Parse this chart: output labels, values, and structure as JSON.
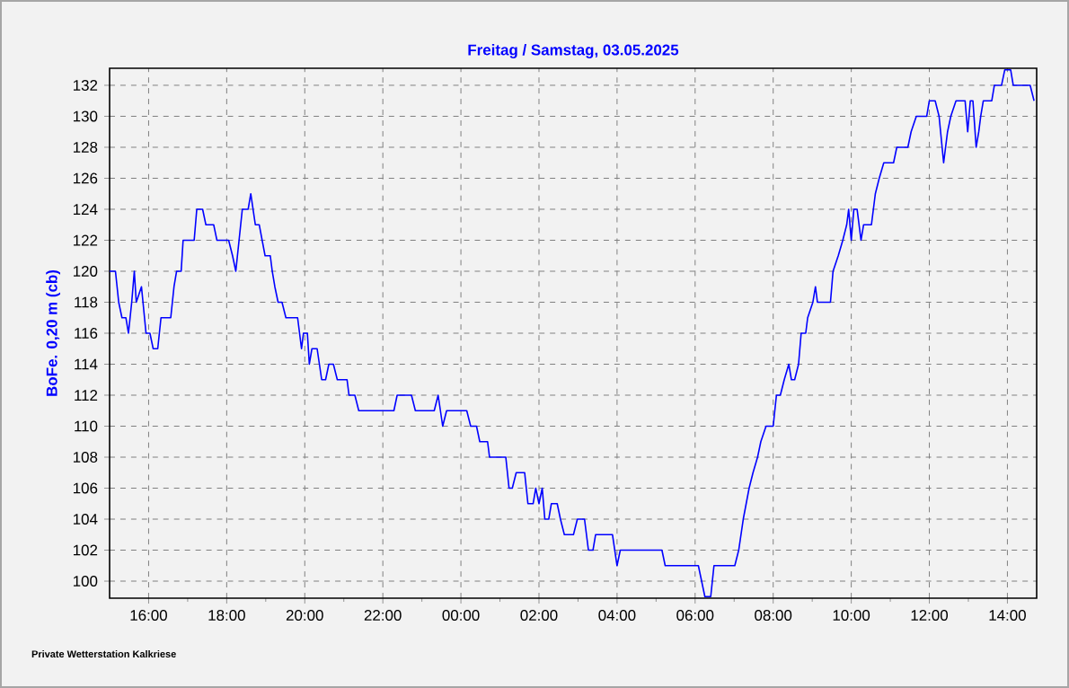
{
  "chart_data": {
    "type": "line",
    "title": "Freitag / Samstag, 03.05.2025",
    "ylabel": "BoFe. 0,20 m (cb)",
    "annotations": [
      "Private Wetterstation Kalkriese"
    ],
    "x": [
      "2025-05-02T15:00",
      "2025-05-02T15:09",
      "2025-05-02T15:14",
      "2025-05-02T15:19",
      "2025-05-02T15:25",
      "2025-05-02T15:29",
      "2025-05-02T15:34",
      "2025-05-02T15:38",
      "2025-05-02T15:41",
      "2025-05-02T15:49",
      "2025-05-02T15:56",
      "2025-05-02T16:02",
      "2025-05-02T16:07",
      "2025-05-02T16:14",
      "2025-05-02T16:19",
      "2025-05-02T16:34",
      "2025-05-02T16:39",
      "2025-05-02T16:43",
      "2025-05-02T16:50",
      "2025-05-02T16:53",
      "2025-05-02T17:10",
      "2025-05-02T17:14",
      "2025-05-02T17:23",
      "2025-05-02T17:28",
      "2025-05-02T17:40",
      "2025-05-02T17:45",
      "2025-05-02T18:03",
      "2025-05-02T18:09",
      "2025-05-02T18:14",
      "2025-05-02T18:19",
      "2025-05-02T18:24",
      "2025-05-02T18:33",
      "2025-05-02T18:37",
      "2025-05-02T18:44",
      "2025-05-02T18:50",
      "2025-05-02T18:59",
      "2025-05-02T19:07",
      "2025-05-02T19:10",
      "2025-05-02T19:14",
      "2025-05-02T19:19",
      "2025-05-02T19:25",
      "2025-05-02T19:31",
      "2025-05-02T19:49",
      "2025-05-02T19:55",
      "2025-05-02T19:58",
      "2025-05-02T20:04",
      "2025-05-02T20:07",
      "2025-05-02T20:11",
      "2025-05-02T20:19",
      "2025-05-02T20:26",
      "2025-05-02T20:32",
      "2025-05-02T20:37",
      "2025-05-02T20:44",
      "2025-05-02T20:50",
      "2025-05-02T21:05",
      "2025-05-02T21:08",
      "2025-05-02T21:17",
      "2025-05-02T21:23",
      "2025-05-02T22:17",
      "2025-05-02T22:22",
      "2025-05-02T22:44",
      "2025-05-02T22:50",
      "2025-05-02T23:19",
      "2025-05-02T23:25",
      "2025-05-02T23:32",
      "2025-05-02T23:38",
      "2025-05-03T00:09",
      "2025-05-03T00:15",
      "2025-05-03T00:24",
      "2025-05-03T00:29",
      "2025-05-03T00:41",
      "2025-05-03T00:44",
      "2025-05-03T01:09",
      "2025-05-03T01:14",
      "2025-05-03T01:19",
      "2025-05-03T01:25",
      "2025-05-03T01:38",
      "2025-05-03T01:43",
      "2025-05-03T01:51",
      "2025-05-03T01:55",
      "2025-05-03T02:00",
      "2025-05-03T02:05",
      "2025-05-03T02:09",
      "2025-05-03T02:15",
      "2025-05-03T02:19",
      "2025-05-03T02:28",
      "2025-05-03T02:33",
      "2025-05-03T02:39",
      "2025-05-03T02:53",
      "2025-05-03T02:59",
      "2025-05-03T03:10",
      "2025-05-03T03:16",
      "2025-05-03T03:23",
      "2025-05-03T03:27",
      "2025-05-03T03:53",
      "2025-05-03T04:00",
      "2025-05-03T04:05",
      "2025-05-03T05:09",
      "2025-05-03T05:14",
      "2025-05-03T06:05",
      "2025-05-03T06:15",
      "2025-05-03T06:24",
      "2025-05-03T06:29",
      "2025-05-03T07:01",
      "2025-05-03T07:07",
      "2025-05-03T07:14",
      "2025-05-03T07:23",
      "2025-05-03T07:29",
      "2025-05-03T07:36",
      "2025-05-03T07:41",
      "2025-05-03T07:49",
      "2025-05-03T08:00",
      "2025-05-03T08:05",
      "2025-05-03T08:11",
      "2025-05-03T08:17",
      "2025-05-03T08:24",
      "2025-05-03T08:28",
      "2025-05-03T08:33",
      "2025-05-03T08:39",
      "2025-05-03T08:43",
      "2025-05-03T08:50",
      "2025-05-03T08:53",
      "2025-05-03T09:01",
      "2025-05-03T09:05",
      "2025-05-03T09:08",
      "2025-05-03T09:28",
      "2025-05-03T09:32",
      "2025-05-03T09:40",
      "2025-05-03T09:47",
      "2025-05-03T09:53",
      "2025-05-03T09:56",
      "2025-05-03T10:00",
      "2025-05-03T10:04",
      "2025-05-03T10:09",
      "2025-05-03T10:15",
      "2025-05-03T10:19",
      "2025-05-03T10:31",
      "2025-05-03T10:37",
      "2025-05-03T10:43",
      "2025-05-03T10:50",
      "2025-05-03T11:05",
      "2025-05-03T11:10",
      "2025-05-03T11:27",
      "2025-05-03T11:32",
      "2025-05-03T11:40",
      "2025-05-03T11:56",
      "2025-05-03T12:00",
      "2025-05-03T12:09",
      "2025-05-03T12:15",
      "2025-05-03T12:22",
      "2025-05-03T12:28",
      "2025-05-03T12:33",
      "2025-05-03T12:41",
      "2025-05-03T12:55",
      "2025-05-03T12:59",
      "2025-05-03T13:03",
      "2025-05-03T13:07",
      "2025-05-03T13:12",
      "2025-05-03T13:16",
      "2025-05-03T13:19",
      "2025-05-03T13:23",
      "2025-05-03T13:36",
      "2025-05-03T13:40",
      "2025-05-03T13:51",
      "2025-05-03T13:56",
      "2025-05-03T14:05",
      "2025-05-03T14:09",
      "2025-05-03T14:35",
      "2025-05-03T14:41"
    ],
    "series": [
      {
        "color": "#0000ff",
        "values": [
          120,
          120,
          118,
          117,
          117,
          116,
          118,
          120,
          118,
          119,
          116,
          116,
          115,
          115,
          117,
          117,
          119,
          120,
          120,
          122,
          122,
          124,
          124,
          123,
          123,
          122,
          122,
          121,
          120,
          122,
          124,
          124,
          125,
          123,
          123,
          121,
          121,
          120,
          119,
          118,
          118,
          117,
          117,
          115,
          116,
          116,
          114,
          115,
          115,
          113,
          113,
          114,
          114,
          113,
          113,
          112,
          112,
          111,
          111,
          112,
          112,
          111,
          111,
          112,
          110,
          111,
          111,
          110,
          110,
          109,
          109,
          108,
          108,
          106,
          106,
          107,
          107,
          105,
          105,
          106,
          105,
          106,
          104,
          104,
          105,
          105,
          104,
          103,
          103,
          104,
          104,
          102,
          102,
          103,
          103,
          101,
          102,
          102,
          101,
          101,
          99,
          99,
          101,
          101,
          102,
          104,
          106,
          107,
          108,
          109,
          110,
          110,
          112,
          112,
          113,
          114,
          113,
          113,
          114,
          116,
          116,
          117,
          118,
          119,
          118,
          118,
          120,
          121,
          122,
          123,
          124,
          122,
          124,
          124,
          122,
          123,
          123,
          125,
          126,
          127,
          127,
          128,
          128,
          129,
          130,
          130,
          131,
          131,
          130,
          127,
          129,
          130,
          131,
          131,
          129,
          131,
          131,
          128,
          129,
          130,
          131,
          131,
          132,
          132,
          133,
          133,
          132,
          132,
          131
        ]
      }
    ],
    "xlim": [
      "2025-05-02T15:00",
      "2025-05-03T14:45"
    ],
    "ylim": [
      98.9,
      133.1
    ],
    "xticks": [
      {
        "value": "2025-05-02T16:00",
        "label": "16:00"
      },
      {
        "value": "2025-05-02T18:00",
        "label": "18:00"
      },
      {
        "value": "2025-05-02T20:00",
        "label": "20:00"
      },
      {
        "value": "2025-05-02T22:00",
        "label": "22:00"
      },
      {
        "value": "2025-05-03T00:00",
        "label": "00:00"
      },
      {
        "value": "2025-05-03T02:00",
        "label": "02:00"
      },
      {
        "value": "2025-05-03T04:00",
        "label": "04:00"
      },
      {
        "value": "2025-05-03T06:00",
        "label": "06:00"
      },
      {
        "value": "2025-05-03T08:00",
        "label": "08:00"
      },
      {
        "value": "2025-05-03T10:00",
        "label": "10:00"
      },
      {
        "value": "2025-05-03T12:00",
        "label": "12:00"
      },
      {
        "value": "2025-05-03T14:00",
        "label": "14:00"
      }
    ],
    "yticks": [
      100,
      102,
      104,
      106,
      108,
      110,
      112,
      114,
      116,
      118,
      120,
      122,
      124,
      126,
      128,
      130,
      132
    ],
    "grid": true,
    "marker": "none",
    "line_style": "solid"
  }
}
